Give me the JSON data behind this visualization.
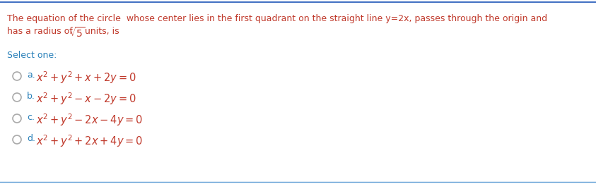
{
  "bg_color": "#ffffff",
  "top_line_color": "#4472c4",
  "bottom_line_color": "#5b9bd5",
  "question_color": "#c0392b",
  "q_line1": "The equation of the circle  whose center lies in the first quadrant on the straight line y=2x, passes through the origin and",
  "q_line2_pre": "has a radius of ",
  "q_line2_sqrt": "$\\sqrt{5}$",
  "q_line2_post": "units, is",
  "select_text": "Select one:",
  "select_color": "#2980b9",
  "formula_color": "#c0392b",
  "label_color": "#2980b9",
  "options": [
    {
      "label": "a.",
      "formula": "$x^2+y^2+x+2y=0$"
    },
    {
      "label": "b.",
      "formula": "$x^2+y^2-x-2y=0$"
    },
    {
      "label": "c.",
      "formula": "$x^2+y^2-2x-4y=0$"
    },
    {
      "label": "d.",
      "formula": "$x^2+y^2+2x+4y=0$"
    }
  ],
  "circle_color": "#aaaaaa",
  "figwidth": 8.43,
  "figheight": 2.61,
  "dpi": 100
}
